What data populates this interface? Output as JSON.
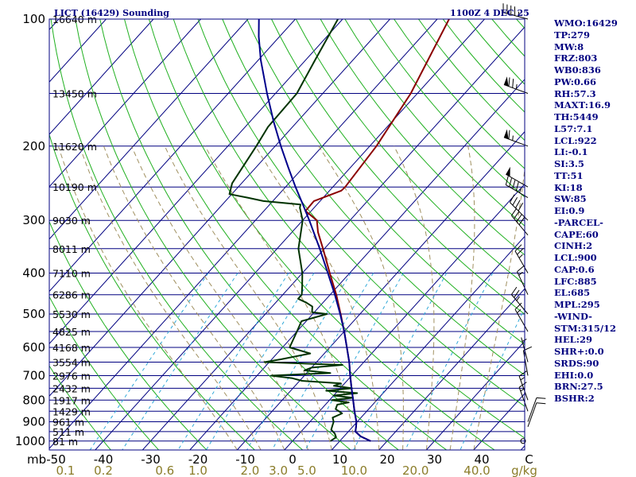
{
  "header": {
    "station": "LICT (16429) Sounding",
    "time": "1100Z  4 DEC 25"
  },
  "chart_data": {
    "type": "skew-t",
    "pressure_levels": [
      100,
      200,
      300,
      400,
      500,
      600,
      700,
      800,
      900,
      1000
    ],
    "height_labels": [
      {
        "p": 100,
        "label": "16640 m"
      },
      {
        "p": 150,
        "label": "13450 m"
      },
      {
        "p": 200,
        "label": "11620 m"
      },
      {
        "p": 250,
        "label": "10190 m"
      },
      {
        "p": 300,
        "label": "9030 m"
      },
      {
        "p": 350,
        "label": "8011 m"
      },
      {
        "p": 400,
        "label": "7110 m"
      },
      {
        "p": 450,
        "label": "6286 m"
      },
      {
        "p": 500,
        "label": "5530 m"
      },
      {
        "p": 550,
        "label": "4825 m"
      },
      {
        "p": 600,
        "label": "4168 m"
      },
      {
        "p": 650,
        "label": "3554 m"
      },
      {
        "p": 700,
        "label": "2976 m"
      },
      {
        "p": 750,
        "label": "2432 m"
      },
      {
        "p": 800,
        "label": "1917 m"
      },
      {
        "p": 850,
        "label": "1429 m"
      },
      {
        "p": 900,
        "label": "961 m"
      },
      {
        "p": 950,
        "label": "511 m"
      },
      {
        "p": 1000,
        "label": "81 m"
      }
    ],
    "x_unit_label": "mb",
    "temperature_ticks": [
      "-50",
      "-40",
      "-30",
      "-20",
      "-10",
      "0",
      "10",
      "20",
      "30",
      "40",
      "C"
    ],
    "temperature_tick_values": [
      -50,
      -40,
      -30,
      -20,
      -10,
      0,
      10,
      20,
      30,
      40,
      50
    ],
    "mixing_ratio_ticks": [
      "0.1",
      "0.2",
      "0.6",
      "1.0",
      "2.0",
      "3.0",
      "5.0",
      "10.0",
      "20.0",
      "40.0",
      "g/kg"
    ],
    "mixing_ratio_x": [
      -48,
      -40,
      -27,
      -20,
      -9,
      -3,
      3,
      13,
      26,
      39,
      49
    ],
    "temperature_range": [
      -50,
      50
    ],
    "pressure_range": [
      100,
      1050
    ],
    "series": [
      {
        "name": "",
        "color": "#8b0000",
        "points": [
          [
            1000,
            16.5
          ],
          [
            975,
            13.5
          ],
          [
            950,
            11.5
          ],
          [
            925,
            10.7
          ],
          [
            900,
            9.8
          ],
          [
            850,
            7.4
          ],
          [
            800,
            5.0
          ],
          [
            750,
            2.4
          ],
          [
            700,
            -0.3
          ],
          [
            650,
            -3.1
          ],
          [
            600,
            -6.4
          ],
          [
            550,
            -10.0
          ],
          [
            500,
            -14.1
          ],
          [
            450,
            -18.7
          ],
          [
            400,
            -24.2
          ],
          [
            350,
            -30.3
          ],
          [
            320,
            -34.5
          ],
          [
            300,
            -37.0
          ],
          [
            285,
            -41.2
          ],
          [
            270,
            -41.3
          ],
          [
            255,
            -37.5
          ],
          [
            250,
            -37.4
          ],
          [
            200,
            -38.6
          ],
          [
            150,
            -41.4
          ],
          [
            100,
            -47.5
          ]
        ]
      },
      {
        "name": "",
        "color": "#003300",
        "points": [
          [
            1000,
            8.0
          ],
          [
            980,
            8.5
          ],
          [
            960,
            7.5
          ],
          [
            940,
            6.0
          ],
          [
            920,
            5.5
          ],
          [
            900,
            5.0
          ],
          [
            880,
            4.0
          ],
          [
            860,
            5.2
          ],
          [
            840,
            3.0
          ],
          [
            820,
            2.5
          ],
          [
            810,
            4.5
          ],
          [
            800,
            0.5
          ],
          [
            790,
            4.5
          ],
          [
            780,
            0.0
          ],
          [
            770,
            4.5
          ],
          [
            760,
            -2.5
          ],
          [
            750,
            2.5
          ],
          [
            740,
            -1.8
          ],
          [
            730,
            -0.8
          ],
          [
            720,
            -9.5
          ],
          [
            710,
            -12.0
          ],
          [
            700,
            -17.0
          ],
          [
            690,
            -5.0
          ],
          [
            680,
            -11.0
          ],
          [
            670,
            -10.0
          ],
          [
            660,
            -4.0
          ],
          [
            650,
            -21.0
          ],
          [
            640,
            -18.0
          ],
          [
            620,
            -13.0
          ],
          [
            600,
            -18.5
          ],
          [
            550,
            -20.0
          ],
          [
            520,
            -21.0
          ],
          [
            510,
            -19.0
          ],
          [
            500,
            -17.0
          ],
          [
            495,
            -20.5
          ],
          [
            480,
            -21.5
          ],
          [
            470,
            -23.5
          ],
          [
            460,
            -26.0
          ],
          [
            450,
            -26.0
          ],
          [
            430,
            -27.5
          ],
          [
            400,
            -30.0
          ],
          [
            350,
            -35.5
          ],
          [
            300,
            -40.0
          ],
          [
            280,
            -43.0
          ],
          [
            275,
            -43.5
          ],
          [
            270,
            -52.0
          ],
          [
            265,
            -56.0
          ],
          [
            260,
            -60.5
          ],
          [
            245,
            -62.0
          ],
          [
            200,
            -64.0
          ],
          [
            180,
            -65.2
          ],
          [
            150,
            -65.5
          ],
          [
            125,
            -68.0
          ],
          [
            100,
            -71.0
          ]
        ]
      },
      {
        "name": "",
        "color": "#00008b",
        "points": [
          [
            1000,
            16.5
          ],
          [
            975,
            13.5
          ],
          [
            950,
            11.5
          ],
          [
            925,
            10.7
          ],
          [
            900,
            9.8
          ],
          [
            850,
            7.4
          ],
          [
            800,
            5.0
          ],
          [
            750,
            2.4
          ],
          [
            700,
            -0.3
          ],
          [
            650,
            -3.1
          ],
          [
            600,
            -6.4
          ],
          [
            550,
            -10.0
          ],
          [
            500,
            -14.2
          ],
          [
            450,
            -19.0
          ],
          [
            400,
            -24.6
          ],
          [
            350,
            -31.0
          ],
          [
            300,
            -38.6
          ],
          [
            275,
            -43.0
          ],
          [
            250,
            -47.9
          ],
          [
            225,
            -53.1
          ],
          [
            200,
            -58.8
          ],
          [
            175,
            -65.0
          ],
          [
            150,
            -71.8
          ],
          [
            125,
            -79.5
          ],
          [
            110,
            -84.4
          ],
          [
            100,
            -87.7
          ]
        ]
      }
    ],
    "wind_barbs": [
      {
        "p": 100,
        "dir": 285,
        "spd": 45
      },
      {
        "p": 150,
        "dir": 290,
        "spd": 75
      },
      {
        "p": 200,
        "dir": 290,
        "spd": 65
      },
      {
        "p": 250,
        "dir": 300,
        "spd": 50
      },
      {
        "p": 265,
        "dir": 300,
        "spd": 45
      },
      {
        "p": 300,
        "dir": 315,
        "spd": 40
      },
      {
        "p": 325,
        "dir": 320,
        "spd": 40
      },
      {
        "p": 400,
        "dir": 330,
        "spd": 25
      },
      {
        "p": 450,
        "dir": 335,
        "spd": 15
      },
      {
        "p": 500,
        "dir": 320,
        "spd": 25
      },
      {
        "p": 550,
        "dir": 330,
        "spd": 15
      },
      {
        "p": 650,
        "dir": 345,
        "spd": 5
      },
      {
        "p": 700,
        "dir": 350,
        "spd": 10
      },
      {
        "p": 800,
        "dir": 340,
        "spd": 15
      },
      {
        "p": 850,
        "dir": 340,
        "spd": 15
      },
      {
        "p": 900,
        "dir": 20,
        "spd": 10
      },
      {
        "p": 925,
        "dir": 20,
        "spd": 10
      },
      {
        "p": 1000,
        "dir": 0,
        "spd": 0
      }
    ]
  },
  "stats": [
    "WMO:16429",
    "TP:279",
    "MW:8",
    "FRZ:803",
    "WB0:836",
    "PW:0.66",
    "RH:57.3",
    "MAXT:16.9",
    "TH:5449",
    "L57:7.1",
    "LCL:922",
    "LI:-0.1",
    "SI:3.5",
    "TT:51",
    "KI:18",
    "SW:85",
    "EI:0.9",
    "-PARCEL-",
    "CAPE:60",
    "CINH:2",
    "LCL:900",
    "CAP:0.6",
    "LFC:885",
    "EL:685",
    "MPL:295",
    "-WIND-",
    "STM:315/12",
    "HEL:29",
    "SHR+:0.0",
    "SRDS:90",
    "EHI:0.0",
    "BRN:27.5",
    "BSHR:2"
  ],
  "colors": {
    "isobar": "#000080",
    "isotherm": "#000080",
    "dry_adiabat": "#20b020",
    "moist_adiabat": "#a09060",
    "mixing_ratio": "#2fa8d8",
    "temperature": "#8b0000",
    "dewpoint": "#003300",
    "parcel": "#00008b"
  }
}
